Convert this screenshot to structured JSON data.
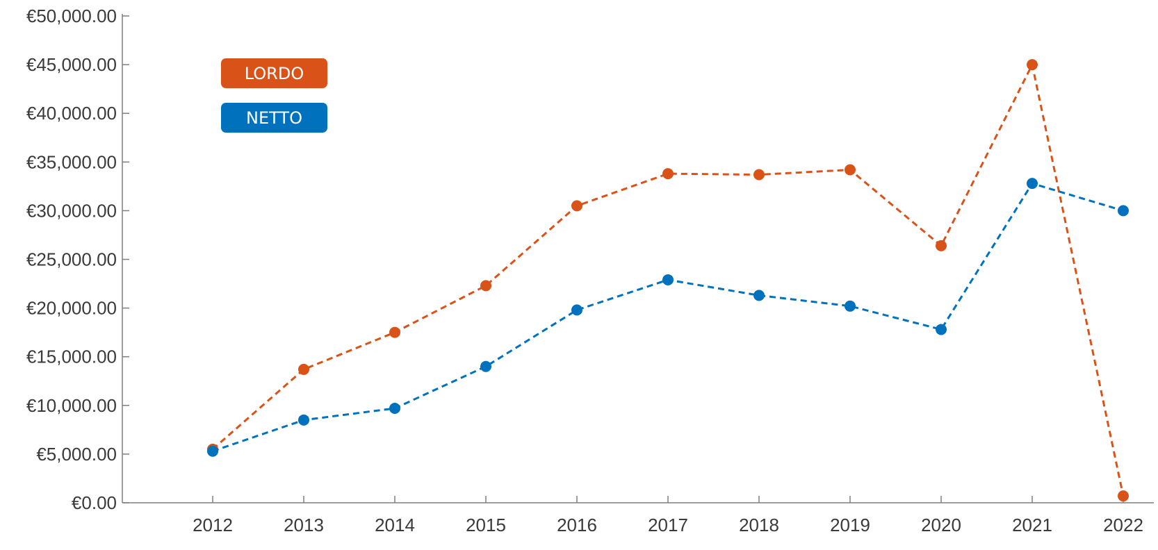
{
  "chart_data": {
    "type": "line",
    "title": "",
    "xlabel": "",
    "ylabel": "",
    "categories": [
      "2012",
      "2013",
      "2014",
      "2015",
      "2016",
      "2017",
      "2018",
      "2019",
      "2020",
      "2021",
      "2022"
    ],
    "ylim": [
      0,
      50000
    ],
    "y_ticks": [
      0,
      5000,
      10000,
      15000,
      20000,
      25000,
      30000,
      35000,
      40000,
      45000,
      50000
    ],
    "y_tick_labels": [
      "€0.00",
      "€5,000.00",
      "€10,000.00",
      "€15,000.00",
      "€20,000.00",
      "€25,000.00",
      "€30,000.00",
      "€35,000.00",
      "€40,000.00",
      "€45,000.00",
      "€50,000.00"
    ],
    "grid": false,
    "legend_position": "top-left",
    "line_style": "dashed",
    "marker": "circle",
    "series": [
      {
        "name": "LORDO",
        "color": "#D95319",
        "values": [
          5500,
          13700,
          17500,
          22300,
          30500,
          33800,
          33700,
          34200,
          26400,
          45000,
          700
        ]
      },
      {
        "name": "NETTO",
        "color": "#0072BD",
        "values": [
          5300,
          8500,
          9700,
          14000,
          19800,
          22900,
          21300,
          20200,
          17800,
          32800,
          30000
        ]
      }
    ]
  }
}
